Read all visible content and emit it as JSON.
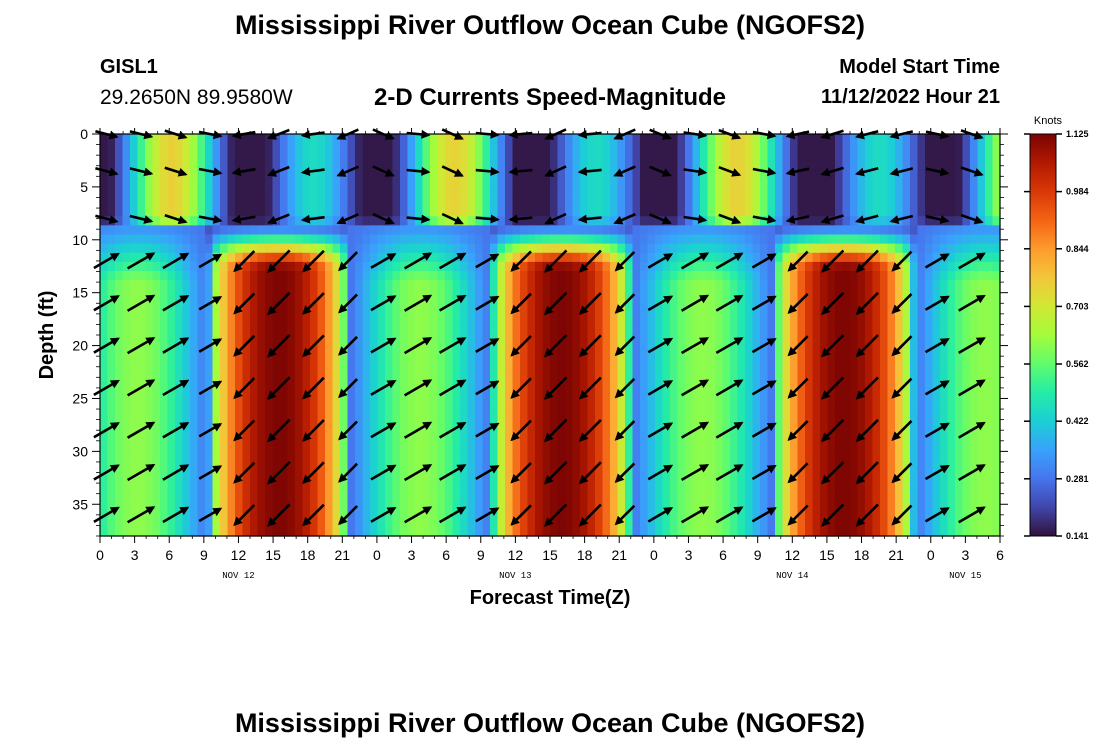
{
  "header": {
    "title": "Mississippi River Outflow Ocean Cube (NGOFS2)",
    "station_id": "GISL1",
    "station_coords": "29.2650N  89.9580W",
    "plot_subtitle": "2-D Currents Speed-Magnitude",
    "model_start_label": "Model Start Time",
    "model_start_value": "11/12/2022 Hour 21"
  },
  "footer": {
    "title_repeat": "Mississippi River Outflow Ocean Cube (NGOFS2)"
  },
  "colors": {
    "colormap": [
      "#30123b",
      "#4145ab",
      "#4675ed",
      "#39a2fc",
      "#1bcfd4",
      "#24eca6",
      "#61fc6c",
      "#a4fc3b",
      "#d1e834",
      "#f3c63a",
      "#fe9b2d",
      "#f36315",
      "#d93806",
      "#b11901",
      "#7a0403"
    ],
    "arrow": "#000000",
    "axis": "#000000"
  },
  "chart_data": {
    "type": "heatmap",
    "title": "2-D Currents Speed-Magnitude",
    "xlabel": "Forecast Time(Z)",
    "ylabel": "Depth (ft)",
    "x_range_hours": [
      0,
      78
    ],
    "y_range_ft": [
      0,
      38
    ],
    "x_tick_labels": [
      "0",
      "3",
      "6",
      "9",
      "12",
      "15",
      "18",
      "21",
      "0",
      "3",
      "6",
      "9",
      "12",
      "15",
      "18",
      "21",
      "0",
      "3",
      "6",
      "9",
      "12",
      "15",
      "18",
      "21",
      "0",
      "3",
      "6"
    ],
    "y_ticks": [
      0,
      5,
      10,
      15,
      20,
      25,
      30,
      35
    ],
    "date_labels": [
      {
        "label": "NOV 12",
        "hour": 12
      },
      {
        "label": "NOV 13",
        "hour": 36
      },
      {
        "label": "NOV 14",
        "hour": 60
      },
      {
        "label": "NOV 15",
        "hour": 75
      }
    ],
    "colorbar": {
      "units": "Knots",
      "min": 0.141,
      "max": 1.125,
      "tick_labels": [
        "1.125",
        "0.984",
        "0.844",
        "0.703",
        "0.562",
        "0.422",
        "0.281",
        "0.141"
      ]
    },
    "speed_field": {
      "tidal_period_hours": 24.5,
      "deep_peak_hours": [
        15.5,
        40,
        64.5
      ],
      "deep_layer_top_ft": 9,
      "surface_layer_bottom_ft": 9,
      "deep_speed_range_knots": [
        0.2,
        1.12
      ],
      "surface_speed_range_knots": [
        0.15,
        0.75
      ]
    },
    "vector_depths_ft": [
      0,
      3.5,
      8,
      12,
      16,
      20,
      24,
      28,
      32,
      36
    ]
  }
}
